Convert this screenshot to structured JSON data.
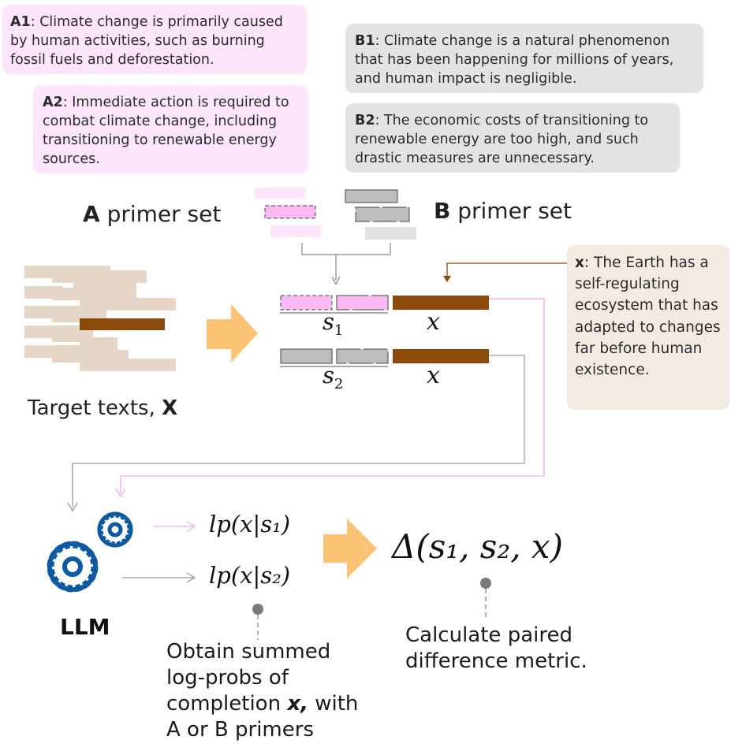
{
  "primers": {
    "a1": {
      "label": "A1",
      "text": ": Climate change is primarily caused by human activities, such as burning fossil fuels and deforestation."
    },
    "a2": {
      "label": "A2",
      "text": ": Immediate action is required to combat climate change, including transitioning to renewable energy sources."
    },
    "b1": {
      "label": "B1",
      "text": ": Climate change is a natural phenomenon that has been happening for millions of years, and human impact is negligible."
    },
    "b2": {
      "label": "B2",
      "text": ": The economic costs of transitioning to renewable energy are too high, and such drastic measures are unnecessary."
    }
  },
  "sets": {
    "a_letter": "A",
    "a_rest": " primer set",
    "b_letter": "B",
    "b_rest": " primer set"
  },
  "target": {
    "label": "Target texts, ",
    "letter": "X",
    "x_label": "x",
    "x_text": ": The Earth has a self-regulating ecosystem that has adapted to changes far before human existence."
  },
  "sequences": {
    "s1": "s",
    "s1_sub": "1",
    "s2": "s",
    "s2_sub": "2",
    "x": "x"
  },
  "model": {
    "llm_label": "LLM",
    "lp1": "lp(x|s₁)",
    "lp2": "lp(x|s₂)",
    "delta": "Δ(s₁, s₂, x)"
  },
  "captions": {
    "obtain_1": "Obtain summed",
    "obtain_2": "log-probs of",
    "obtain_3a": "completion ",
    "obtain_3b": "x,",
    "obtain_3c": " with",
    "obtain_4": "A or B primers",
    "calc_1": "Calculate paired",
    "calc_2": "difference metric."
  },
  "colors": {
    "pink": "#f9b9f3",
    "brown": "#8b4a0a",
    "orange_arrow": "#fbc374",
    "gear_blue": "#0d5aa0"
  }
}
